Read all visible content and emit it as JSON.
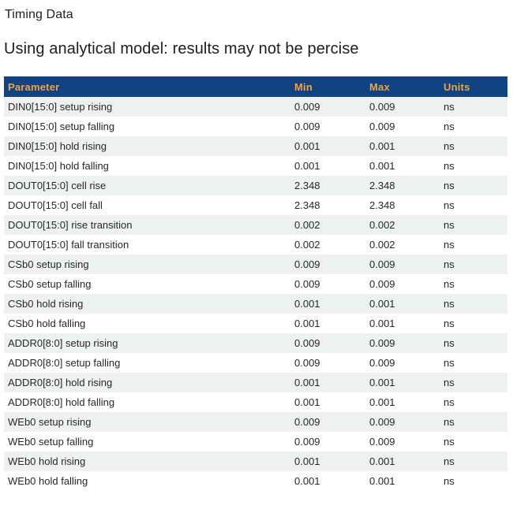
{
  "page": {
    "title": "Timing Data",
    "subtitle": "Using analytical model: results may not be percise"
  },
  "table": {
    "columns": [
      {
        "key": "parameter",
        "label": "Parameter"
      },
      {
        "key": "min",
        "label": "Min"
      },
      {
        "key": "max",
        "label": "Max"
      },
      {
        "key": "units",
        "label": "Units"
      }
    ],
    "rows": [
      [
        "DIN0[15:0] setup rising",
        "0.009",
        "0.009",
        "ns"
      ],
      [
        "DIN0[15:0] setup falling",
        "0.009",
        "0.009",
        "ns"
      ],
      [
        "DIN0[15:0] hold rising",
        "0.001",
        "0.001",
        "ns"
      ],
      [
        "DIN0[15:0] hold falling",
        "0.001",
        "0.001",
        "ns"
      ],
      [
        "DOUT0[15:0] cell rise",
        "2.348",
        "2.348",
        "ns"
      ],
      [
        "DOUT0[15:0] cell fall",
        "2.348",
        "2.348",
        "ns"
      ],
      [
        "DOUT0[15:0] rise transition",
        "0.002",
        "0.002",
        "ns"
      ],
      [
        "DOUT0[15:0] fall transition",
        "0.002",
        "0.002",
        "ns"
      ],
      [
        "CSb0 setup rising",
        "0.009",
        "0.009",
        "ns"
      ],
      [
        "CSb0 setup falling",
        "0.009",
        "0.009",
        "ns"
      ],
      [
        "CSb0 hold rising",
        "0.001",
        "0.001",
        "ns"
      ],
      [
        "CSb0 hold falling",
        "0.001",
        "0.001",
        "ns"
      ],
      [
        "ADDR0[8:0] setup rising",
        "0.009",
        "0.009",
        "ns"
      ],
      [
        "ADDR0[8:0] setup falling",
        "0.009",
        "0.009",
        "ns"
      ],
      [
        "ADDR0[8:0] hold rising",
        "0.001",
        "0.001",
        "ns"
      ],
      [
        "ADDR0[8:0] hold falling",
        "0.001",
        "0.001",
        "ns"
      ],
      [
        "WEb0 setup rising",
        "0.009",
        "0.009",
        "ns"
      ],
      [
        "WEb0 setup falling",
        "0.009",
        "0.009",
        "ns"
      ],
      [
        "WEb0 hold rising",
        "0.001",
        "0.001",
        "ns"
      ],
      [
        "WEb0 hold falling",
        "0.001",
        "0.001",
        "ns"
      ]
    ]
  },
  "colors": {
    "header_bg": "#114382",
    "header_text": "#F1A33C",
    "row_alt_bg": "#EFF1F1",
    "row_text": "#26272B",
    "title_text": "#1E1E1E"
  }
}
